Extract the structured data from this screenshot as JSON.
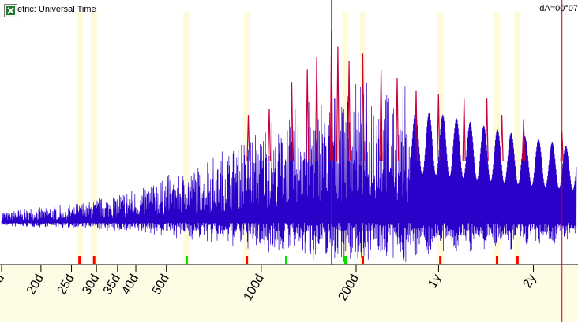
{
  "header": {
    "title": "etric: Universal Time",
    "delta": "dA=00°07"
  },
  "icons": {
    "export": "excel-export-icon"
  },
  "colors": {
    "background": "#ffffff",
    "axis_band": "#fffce6",
    "highlight_band": "#fffbd9",
    "signal": "#2b00c8",
    "peak": "#c8003c",
    "marker_red": "#ff0000",
    "marker_green": "#00e000",
    "cursor": "#cc0000"
  },
  "chart_data": {
    "type": "line",
    "x_scale": "log",
    "x_unit": "period",
    "xlim_days": [
      15,
      1000
    ],
    "tick_labels": [
      {
        "label": "d",
        "days": 15
      },
      {
        "label": "20d",
        "days": 20
      },
      {
        "label": "25d",
        "days": 25
      },
      {
        "label": "30d",
        "days": 30
      },
      {
        "label": "35d",
        "days": 35
      },
      {
        "label": "40d",
        "days": 40
      },
      {
        "label": "50d",
        "days": 50
      },
      {
        "label": "100d",
        "days": 100
      },
      {
        "label": "200d",
        "days": 200
      },
      {
        "label": "1y",
        "days": 365.25
      },
      {
        "label": "2y",
        "days": 730.5
      }
    ],
    "highlight_periods_days": [
      26.5,
      29.5,
      58,
      90,
      185,
      210,
      370,
      560,
      650
    ],
    "red_markers_days": [
      26.5,
      29.5,
      90,
      210,
      370,
      560,
      650
    ],
    "green_markers_days": [
      58,
      120,
      185
    ],
    "cursor_periods_days": [
      167,
      900
    ],
    "amplitude_range": [
      0,
      1
    ],
    "signal_envelope": [
      {
        "days": 15,
        "amp": 0.06
      },
      {
        "days": 25,
        "amp": 0.09
      },
      {
        "days": 40,
        "amp": 0.17
      },
      {
        "days": 60,
        "amp": 0.28
      },
      {
        "days": 100,
        "amp": 0.48
      },
      {
        "days": 150,
        "amp": 0.64
      },
      {
        "days": 200,
        "amp": 0.7
      },
      {
        "days": 365,
        "amp": 0.66
      },
      {
        "days": 600,
        "amp": 0.55
      },
      {
        "days": 1000,
        "amp": 0.45
      }
    ],
    "peaks": [
      {
        "days": 91,
        "amp": 0.52
      },
      {
        "days": 106,
        "amp": 0.55
      },
      {
        "days": 125,
        "amp": 0.68
      },
      {
        "days": 140,
        "amp": 0.74
      },
      {
        "days": 150,
        "amp": 0.8
      },
      {
        "days": 167,
        "amp": 0.93
      },
      {
        "days": 175,
        "amp": 0.85
      },
      {
        "days": 190,
        "amp": 0.78
      },
      {
        "days": 210,
        "amp": 0.82
      },
      {
        "days": 240,
        "amp": 0.74
      },
      {
        "days": 270,
        "amp": 0.7
      },
      {
        "days": 310,
        "amp": 0.64
      },
      {
        "days": 365,
        "amp": 0.62
      },
      {
        "days": 440,
        "amp": 0.6
      },
      {
        "days": 520,
        "amp": 0.6
      },
      {
        "days": 580,
        "amp": 0.52
      },
      {
        "days": 680,
        "amp": 0.5
      },
      {
        "days": 900,
        "amp": 0.44
      }
    ]
  }
}
